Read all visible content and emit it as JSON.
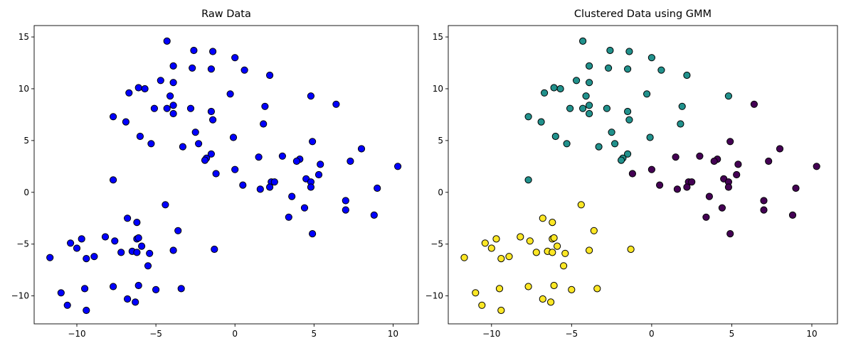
{
  "chart_data": [
    {
      "type": "scatter",
      "title": "Raw Data",
      "xlabel": "",
      "ylabel": "",
      "xlim": [
        -12.7,
        11.6
      ],
      "ylim": [
        -12.7,
        16.1
      ],
      "xticks": [
        -10,
        -5,
        0,
        5,
        10
      ],
      "yticks": [
        -10,
        -5,
        0,
        5,
        10,
        15
      ],
      "grid": false,
      "marker_color": "#0000ff",
      "edge_color": "#000000",
      "points": [
        [
          -4.3,
          14.6
        ],
        [
          -2.6,
          13.7
        ],
        [
          -1.4,
          13.6
        ],
        [
          0.0,
          13.0
        ],
        [
          -3.9,
          12.2
        ],
        [
          -2.7,
          12.0
        ],
        [
          -1.5,
          11.9
        ],
        [
          0.6,
          11.8
        ],
        [
          2.2,
          11.3
        ],
        [
          -4.7,
          10.8
        ],
        [
          -3.9,
          10.6
        ],
        [
          -6.1,
          10.1
        ],
        [
          -5.7,
          10.0
        ],
        [
          -6.7,
          9.6
        ],
        [
          -4.1,
          9.3
        ],
        [
          -0.3,
          9.5
        ],
        [
          4.8,
          9.3
        ],
        [
          6.4,
          8.5
        ],
        [
          -3.9,
          8.4
        ],
        [
          -5.1,
          8.1
        ],
        [
          -4.3,
          8.1
        ],
        [
          -2.8,
          8.1
        ],
        [
          -1.5,
          7.8
        ],
        [
          1.9,
          8.3
        ],
        [
          -7.7,
          7.3
        ],
        [
          -3.9,
          7.6
        ],
        [
          -1.4,
          7.0
        ],
        [
          -6.9,
          6.8
        ],
        [
          1.8,
          6.6
        ],
        [
          -2.5,
          5.8
        ],
        [
          -6.0,
          5.4
        ],
        [
          -0.1,
          5.3
        ],
        [
          -5.3,
          4.7
        ],
        [
          -2.3,
          4.7
        ],
        [
          -3.3,
          4.4
        ],
        [
          4.9,
          4.9
        ],
        [
          8.0,
          4.2
        ],
        [
          -1.5,
          3.7
        ],
        [
          -1.8,
          3.3
        ],
        [
          -1.9,
          3.1
        ],
        [
          1.5,
          3.4
        ],
        [
          3.0,
          3.5
        ],
        [
          4.1,
          3.2
        ],
        [
          3.9,
          3.0
        ],
        [
          7.3,
          3.0
        ],
        [
          5.4,
          2.7
        ],
        [
          10.3,
          2.5
        ],
        [
          -1.2,
          1.8
        ],
        [
          0.0,
          2.2
        ],
        [
          5.3,
          1.7
        ],
        [
          -7.7,
          1.2
        ],
        [
          2.3,
          1.0
        ],
        [
          2.5,
          1.0
        ],
        [
          4.5,
          1.3
        ],
        [
          4.8,
          1.0
        ],
        [
          0.5,
          0.7
        ],
        [
          1.6,
          0.3
        ],
        [
          2.2,
          0.5
        ],
        [
          4.8,
          0.5
        ],
        [
          9.0,
          0.4
        ],
        [
          3.6,
          -0.4
        ],
        [
          7.0,
          -0.8
        ],
        [
          7.0,
          -1.7
        ],
        [
          4.4,
          -1.5
        ],
        [
          3.4,
          -2.4
        ],
        [
          8.8,
          -2.2
        ],
        [
          4.9,
          -4.0
        ],
        [
          -4.4,
          -1.2
        ],
        [
          -6.8,
          -2.5
        ],
        [
          -6.2,
          -2.9
        ],
        [
          -3.6,
          -3.7
        ],
        [
          -8.2,
          -4.3
        ],
        [
          -6.2,
          -4.5
        ],
        [
          -6.1,
          -4.4
        ],
        [
          -10.4,
          -4.9
        ],
        [
          -9.7,
          -4.5
        ],
        [
          -7.6,
          -4.7
        ],
        [
          -10.0,
          -5.4
        ],
        [
          -5.9,
          -5.2
        ],
        [
          -9.4,
          -6.4
        ],
        [
          -8.9,
          -6.2
        ],
        [
          -7.2,
          -5.8
        ],
        [
          -6.5,
          -5.7
        ],
        [
          -6.2,
          -5.8
        ],
        [
          -5.4,
          -5.9
        ],
        [
          -3.9,
          -5.6
        ],
        [
          -1.3,
          -5.5
        ],
        [
          -11.7,
          -6.3
        ],
        [
          -5.5,
          -7.1
        ],
        [
          -7.7,
          -9.1
        ],
        [
          -6.1,
          -9.0
        ],
        [
          -9.5,
          -9.3
        ],
        [
          -5.0,
          -9.4
        ],
        [
          -3.4,
          -9.3
        ],
        [
          -11.0,
          -9.7
        ],
        [
          -6.8,
          -10.3
        ],
        [
          -6.3,
          -10.6
        ],
        [
          -10.6,
          -10.9
        ],
        [
          -9.4,
          -11.4
        ]
      ]
    },
    {
      "type": "scatter",
      "title": "Clustered Data using GMM",
      "xlabel": "",
      "ylabel": "",
      "xlim": [
        -12.7,
        11.6
      ],
      "ylim": [
        -12.7,
        16.1
      ],
      "xticks": [
        -10,
        -5,
        0,
        5,
        10
      ],
      "yticks": [
        -10,
        -5,
        0,
        5,
        10,
        15
      ],
      "grid": false,
      "edge_color": "#000000",
      "cluster_colors": [
        "#440154",
        "#21918c",
        "#fde725"
      ],
      "labels": [
        1,
        1,
        1,
        1,
        1,
        1,
        1,
        1,
        1,
        1,
        1,
        1,
        1,
        1,
        1,
        1,
        1,
        0,
        1,
        1,
        1,
        1,
        1,
        1,
        1,
        1,
        1,
        1,
        1,
        1,
        1,
        1,
        1,
        1,
        1,
        0,
        0,
        1,
        1,
        1,
        0,
        0,
        0,
        0,
        0,
        0,
        0,
        0,
        0,
        0,
        1,
        0,
        0,
        0,
        0,
        0,
        0,
        0,
        0,
        0,
        0,
        0,
        0,
        0,
        0,
        0,
        0,
        2,
        2,
        2,
        2,
        2,
        2,
        2,
        2,
        2,
        2,
        2,
        2,
        2,
        2,
        2,
        2,
        2,
        2,
        2,
        2,
        2,
        2,
        2,
        2,
        2,
        2,
        2,
        2,
        2,
        2,
        2,
        2
      ]
    }
  ]
}
